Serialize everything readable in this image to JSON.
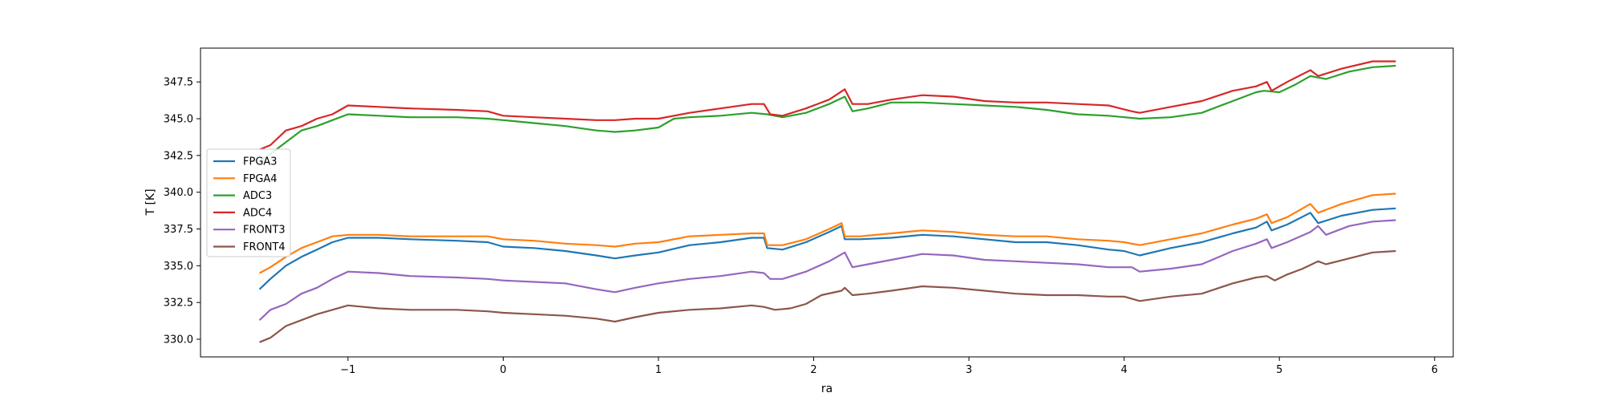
{
  "chart_data": {
    "type": "line",
    "title": "",
    "xlabel": "ra",
    "ylabel": "T [K]",
    "xlim": [
      -1.95,
      6.12
    ],
    "ylim": [
      328.8,
      349.8
    ],
    "xticks": [
      -1,
      0,
      1,
      2,
      3,
      4,
      5,
      6
    ],
    "yticks": [
      330.0,
      332.5,
      335.0,
      337.5,
      340.0,
      342.5,
      345.0,
      347.5
    ],
    "grid": false,
    "legend_position": "center-left",
    "series": [
      {
        "name": "FPGA3",
        "color": "#1f77b4",
        "points": [
          [
            -1.57,
            333.4
          ],
          [
            -1.5,
            334.1
          ],
          [
            -1.4,
            335.0
          ],
          [
            -1.3,
            335.6
          ],
          [
            -1.2,
            336.1
          ],
          [
            -1.1,
            336.6
          ],
          [
            -1.0,
            336.9
          ],
          [
            -0.8,
            336.9
          ],
          [
            -0.6,
            336.8
          ],
          [
            -0.3,
            336.7
          ],
          [
            -0.1,
            336.6
          ],
          [
            0.0,
            336.3
          ],
          [
            0.2,
            336.2
          ],
          [
            0.4,
            336.0
          ],
          [
            0.6,
            335.7
          ],
          [
            0.72,
            335.5
          ],
          [
            0.85,
            335.7
          ],
          [
            1.0,
            335.9
          ],
          [
            1.2,
            336.4
          ],
          [
            1.4,
            336.6
          ],
          [
            1.6,
            336.9
          ],
          [
            1.68,
            336.9
          ],
          [
            1.7,
            336.2
          ],
          [
            1.8,
            336.1
          ],
          [
            1.95,
            336.6
          ],
          [
            2.1,
            337.3
          ],
          [
            2.18,
            337.7
          ],
          [
            2.2,
            336.8
          ],
          [
            2.3,
            336.8
          ],
          [
            2.5,
            336.9
          ],
          [
            2.7,
            337.1
          ],
          [
            2.9,
            337.0
          ],
          [
            3.1,
            336.8
          ],
          [
            3.3,
            336.6
          ],
          [
            3.5,
            336.6
          ],
          [
            3.7,
            336.4
          ],
          [
            3.9,
            336.1
          ],
          [
            4.0,
            336.0
          ],
          [
            4.1,
            335.7
          ],
          [
            4.3,
            336.2
          ],
          [
            4.5,
            336.6
          ],
          [
            4.7,
            337.2
          ],
          [
            4.85,
            337.6
          ],
          [
            4.92,
            338.0
          ],
          [
            4.95,
            337.4
          ],
          [
            5.05,
            337.8
          ],
          [
            5.2,
            338.6
          ],
          [
            5.25,
            337.9
          ],
          [
            5.4,
            338.4
          ],
          [
            5.6,
            338.8
          ],
          [
            5.75,
            338.9
          ]
        ]
      },
      {
        "name": "FPGA4",
        "color": "#ff7f0e",
        "points": [
          [
            -1.57,
            334.5
          ],
          [
            -1.5,
            334.9
          ],
          [
            -1.4,
            335.6
          ],
          [
            -1.3,
            336.2
          ],
          [
            -1.2,
            336.6
          ],
          [
            -1.1,
            337.0
          ],
          [
            -1.0,
            337.1
          ],
          [
            -0.8,
            337.1
          ],
          [
            -0.6,
            337.0
          ],
          [
            -0.3,
            337.0
          ],
          [
            -0.1,
            337.0
          ],
          [
            0.0,
            336.8
          ],
          [
            0.2,
            336.7
          ],
          [
            0.4,
            336.5
          ],
          [
            0.6,
            336.4
          ],
          [
            0.72,
            336.3
          ],
          [
            0.85,
            336.5
          ],
          [
            1.0,
            336.6
          ],
          [
            1.2,
            337.0
          ],
          [
            1.4,
            337.1
          ],
          [
            1.6,
            337.2
          ],
          [
            1.68,
            337.2
          ],
          [
            1.7,
            336.4
          ],
          [
            1.8,
            336.4
          ],
          [
            1.95,
            336.8
          ],
          [
            2.1,
            337.5
          ],
          [
            2.18,
            337.9
          ],
          [
            2.2,
            337.0
          ],
          [
            2.3,
            337.0
          ],
          [
            2.5,
            337.2
          ],
          [
            2.7,
            337.4
          ],
          [
            2.9,
            337.3
          ],
          [
            3.1,
            337.1
          ],
          [
            3.3,
            337.0
          ],
          [
            3.5,
            337.0
          ],
          [
            3.7,
            336.8
          ],
          [
            3.9,
            336.7
          ],
          [
            4.0,
            336.6
          ],
          [
            4.1,
            336.4
          ],
          [
            4.3,
            336.8
          ],
          [
            4.5,
            337.2
          ],
          [
            4.7,
            337.8
          ],
          [
            4.85,
            338.2
          ],
          [
            4.92,
            338.5
          ],
          [
            4.95,
            337.9
          ],
          [
            5.05,
            338.3
          ],
          [
            5.2,
            339.2
          ],
          [
            5.25,
            338.6
          ],
          [
            5.4,
            339.2
          ],
          [
            5.6,
            339.8
          ],
          [
            5.75,
            339.9
          ]
        ]
      },
      {
        "name": "ADC3",
        "color": "#2ca02c",
        "points": [
          [
            -1.57,
            342.1
          ],
          [
            -1.5,
            342.6
          ],
          [
            -1.4,
            343.4
          ],
          [
            -1.3,
            344.2
          ],
          [
            -1.2,
            344.5
          ],
          [
            -1.1,
            344.9
          ],
          [
            -1.0,
            345.3
          ],
          [
            -0.8,
            345.2
          ],
          [
            -0.6,
            345.1
          ],
          [
            -0.3,
            345.1
          ],
          [
            -0.1,
            345.0
          ],
          [
            0.0,
            344.9
          ],
          [
            0.2,
            344.7
          ],
          [
            0.4,
            344.5
          ],
          [
            0.6,
            344.2
          ],
          [
            0.72,
            344.1
          ],
          [
            0.85,
            344.2
          ],
          [
            1.0,
            344.4
          ],
          [
            1.1,
            345.0
          ],
          [
            1.2,
            345.1
          ],
          [
            1.4,
            345.2
          ],
          [
            1.6,
            345.4
          ],
          [
            1.7,
            345.3
          ],
          [
            1.8,
            345.1
          ],
          [
            1.95,
            345.4
          ],
          [
            2.1,
            346.0
          ],
          [
            2.2,
            346.5
          ],
          [
            2.25,
            345.5
          ],
          [
            2.35,
            345.7
          ],
          [
            2.5,
            346.1
          ],
          [
            2.7,
            346.1
          ],
          [
            2.9,
            346.0
          ],
          [
            3.1,
            345.9
          ],
          [
            3.3,
            345.8
          ],
          [
            3.5,
            345.6
          ],
          [
            3.7,
            345.3
          ],
          [
            3.9,
            345.2
          ],
          [
            4.1,
            345.0
          ],
          [
            4.3,
            345.1
          ],
          [
            4.5,
            345.4
          ],
          [
            4.7,
            346.2
          ],
          [
            4.85,
            346.8
          ],
          [
            4.9,
            346.9
          ],
          [
            5.0,
            346.8
          ],
          [
            5.1,
            347.3
          ],
          [
            5.2,
            347.9
          ],
          [
            5.3,
            347.7
          ],
          [
            5.45,
            348.2
          ],
          [
            5.6,
            348.5
          ],
          [
            5.75,
            348.6
          ]
        ]
      },
      {
        "name": "ADC4",
        "color": "#d62728",
        "points": [
          [
            -1.57,
            342.9
          ],
          [
            -1.5,
            343.2
          ],
          [
            -1.4,
            344.2
          ],
          [
            -1.3,
            344.5
          ],
          [
            -1.2,
            345.0
          ],
          [
            -1.1,
            345.3
          ],
          [
            -1.0,
            345.9
          ],
          [
            -0.8,
            345.8
          ],
          [
            -0.6,
            345.7
          ],
          [
            -0.3,
            345.6
          ],
          [
            -0.1,
            345.5
          ],
          [
            0.0,
            345.2
          ],
          [
            0.2,
            345.1
          ],
          [
            0.4,
            345.0
          ],
          [
            0.6,
            344.9
          ],
          [
            0.72,
            344.9
          ],
          [
            0.85,
            345.0
          ],
          [
            1.0,
            345.0
          ],
          [
            1.2,
            345.4
          ],
          [
            1.4,
            345.7
          ],
          [
            1.6,
            346.0
          ],
          [
            1.68,
            346.0
          ],
          [
            1.72,
            345.3
          ],
          [
            1.8,
            345.2
          ],
          [
            1.95,
            345.7
          ],
          [
            2.1,
            346.3
          ],
          [
            2.2,
            347.0
          ],
          [
            2.25,
            346.0
          ],
          [
            2.35,
            346.0
          ],
          [
            2.5,
            346.3
          ],
          [
            2.7,
            346.6
          ],
          [
            2.9,
            346.5
          ],
          [
            3.1,
            346.2
          ],
          [
            3.3,
            346.1
          ],
          [
            3.5,
            346.1
          ],
          [
            3.7,
            346.0
          ],
          [
            3.9,
            345.9
          ],
          [
            4.05,
            345.5
          ],
          [
            4.1,
            345.4
          ],
          [
            4.3,
            345.8
          ],
          [
            4.5,
            346.2
          ],
          [
            4.7,
            346.9
          ],
          [
            4.85,
            347.2
          ],
          [
            4.92,
            347.5
          ],
          [
            4.95,
            346.9
          ],
          [
            5.05,
            347.5
          ],
          [
            5.2,
            348.3
          ],
          [
            5.25,
            347.9
          ],
          [
            5.4,
            348.4
          ],
          [
            5.6,
            348.9
          ],
          [
            5.75,
            348.9
          ]
        ]
      },
      {
        "name": "FRONT3",
        "color": "#9467bd",
        "points": [
          [
            -1.57,
            331.3
          ],
          [
            -1.5,
            332.0
          ],
          [
            -1.4,
            332.4
          ],
          [
            -1.3,
            333.1
          ],
          [
            -1.2,
            333.5
          ],
          [
            -1.1,
            334.1
          ],
          [
            -1.0,
            334.6
          ],
          [
            -0.8,
            334.5
          ],
          [
            -0.6,
            334.3
          ],
          [
            -0.3,
            334.2
          ],
          [
            -0.1,
            334.1
          ],
          [
            0.0,
            334.0
          ],
          [
            0.2,
            333.9
          ],
          [
            0.4,
            333.8
          ],
          [
            0.6,
            333.4
          ],
          [
            0.72,
            333.2
          ],
          [
            0.85,
            333.5
          ],
          [
            1.0,
            333.8
          ],
          [
            1.2,
            334.1
          ],
          [
            1.4,
            334.3
          ],
          [
            1.6,
            334.6
          ],
          [
            1.68,
            334.5
          ],
          [
            1.72,
            334.1
          ],
          [
            1.8,
            334.1
          ],
          [
            1.95,
            334.6
          ],
          [
            2.1,
            335.3
          ],
          [
            2.2,
            335.9
          ],
          [
            2.25,
            334.9
          ],
          [
            2.35,
            335.1
          ],
          [
            2.5,
            335.4
          ],
          [
            2.7,
            335.8
          ],
          [
            2.9,
            335.7
          ],
          [
            3.1,
            335.4
          ],
          [
            3.3,
            335.3
          ],
          [
            3.5,
            335.2
          ],
          [
            3.7,
            335.1
          ],
          [
            3.9,
            334.9
          ],
          [
            4.05,
            334.9
          ],
          [
            4.1,
            334.6
          ],
          [
            4.3,
            334.8
          ],
          [
            4.5,
            335.1
          ],
          [
            4.7,
            336.0
          ],
          [
            4.85,
            336.5
          ],
          [
            4.92,
            336.8
          ],
          [
            4.95,
            336.2
          ],
          [
            5.05,
            336.6
          ],
          [
            5.2,
            337.3
          ],
          [
            5.25,
            337.7
          ],
          [
            5.3,
            337.1
          ],
          [
            5.45,
            337.7
          ],
          [
            5.6,
            338.0
          ],
          [
            5.75,
            338.1
          ]
        ]
      },
      {
        "name": "FRONT4",
        "color": "#8c564b",
        "points": [
          [
            -1.57,
            329.8
          ],
          [
            -1.5,
            330.1
          ],
          [
            -1.4,
            330.9
          ],
          [
            -1.3,
            331.3
          ],
          [
            -1.2,
            331.7
          ],
          [
            -1.1,
            332.0
          ],
          [
            -1.0,
            332.3
          ],
          [
            -0.8,
            332.1
          ],
          [
            -0.6,
            332.0
          ],
          [
            -0.3,
            332.0
          ],
          [
            -0.1,
            331.9
          ],
          [
            0.0,
            331.8
          ],
          [
            0.2,
            331.7
          ],
          [
            0.4,
            331.6
          ],
          [
            0.6,
            331.4
          ],
          [
            0.72,
            331.2
          ],
          [
            0.85,
            331.5
          ],
          [
            1.0,
            331.8
          ],
          [
            1.2,
            332.0
          ],
          [
            1.4,
            332.1
          ],
          [
            1.6,
            332.3
          ],
          [
            1.68,
            332.2
          ],
          [
            1.75,
            332.0
          ],
          [
            1.85,
            332.1
          ],
          [
            1.95,
            332.4
          ],
          [
            2.05,
            333.0
          ],
          [
            2.18,
            333.3
          ],
          [
            2.2,
            333.5
          ],
          [
            2.25,
            333.0
          ],
          [
            2.35,
            333.1
          ],
          [
            2.5,
            333.3
          ],
          [
            2.7,
            333.6
          ],
          [
            2.9,
            333.5
          ],
          [
            3.1,
            333.3
          ],
          [
            3.3,
            333.1
          ],
          [
            3.5,
            333.0
          ],
          [
            3.7,
            333.0
          ],
          [
            3.9,
            332.9
          ],
          [
            4.0,
            332.9
          ],
          [
            4.1,
            332.6
          ],
          [
            4.3,
            332.9
          ],
          [
            4.5,
            333.1
          ],
          [
            4.7,
            333.8
          ],
          [
            4.85,
            334.2
          ],
          [
            4.92,
            334.3
          ],
          [
            4.97,
            334.0
          ],
          [
            5.05,
            334.4
          ],
          [
            5.15,
            334.8
          ],
          [
            5.25,
            335.3
          ],
          [
            5.3,
            335.1
          ],
          [
            5.45,
            335.5
          ],
          [
            5.6,
            335.9
          ],
          [
            5.75,
            336.0
          ]
        ]
      }
    ]
  }
}
